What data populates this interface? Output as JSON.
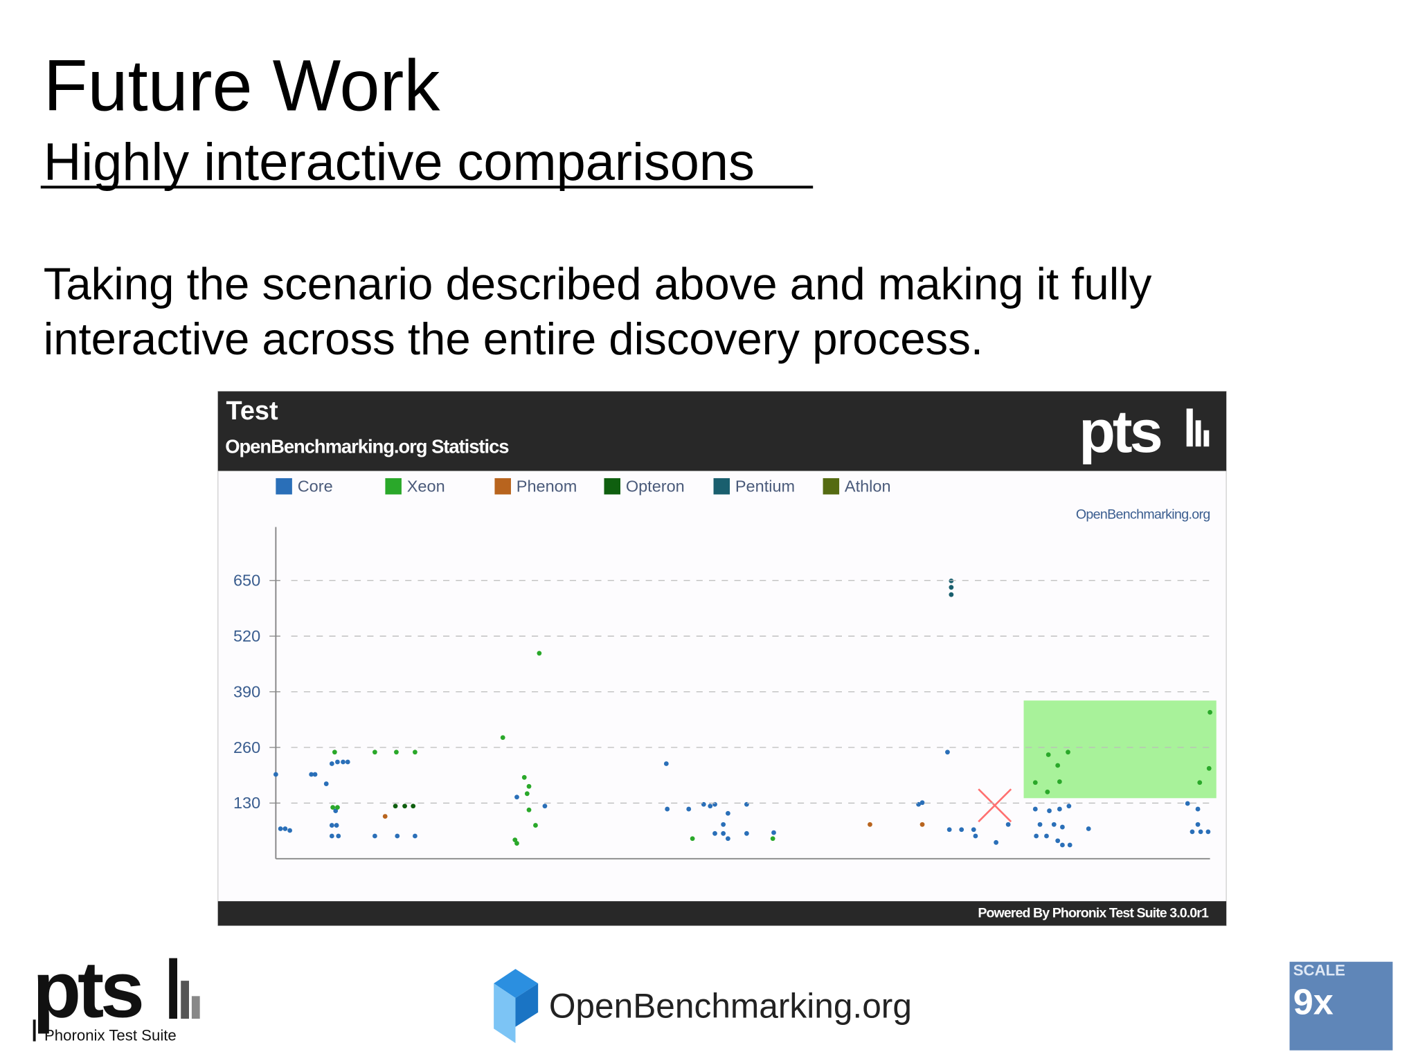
{
  "slide": {
    "title": "Future Work",
    "subtitle": "Highly interactive comparisons",
    "body": [
      "Taking the scenario described above and making it fully",
      "interactive across the entire discovery process."
    ]
  },
  "chart_data": {
    "type": "scatter",
    "title": "Test",
    "subtitle": "OpenBenchmarking.org Statistics",
    "watermark": "OpenBenchmarking.org",
    "brand": "pts",
    "footer": "Powered By Phoronix Test Suite 3.0.0r1",
    "xlim": [
      0,
      100
    ],
    "ylim": [
      0,
      775
    ],
    "yticks": [
      130,
      260,
      390,
      520,
      650
    ],
    "grid": true,
    "series": [
      {
        "name": "Core",
        "color": "#2a6fb8",
        "x": [
          0,
          0.5,
          1.0,
          1.5,
          3.8,
          4.2,
          5.4,
          6.0,
          6.6,
          7.2,
          7.7,
          6.4,
          6.0,
          6.5,
          6.0,
          6.7,
          10.6,
          13.0,
          14.9,
          25.8,
          28.8,
          41.8,
          41.9,
          44.2,
          45.8,
          46.5,
          47.0,
          48.4,
          47.9,
          47.0,
          47.9,
          48.4,
          50.4,
          50.4,
          53.3,
          68.8,
          69.2,
          71.9,
          72.1,
          73.4,
          74.7,
          74.9,
          77.1,
          78.4,
          81.3,
          82.8,
          83.9,
          84.9,
          81.8,
          83.3,
          84.2,
          81.4,
          82.5,
          83.7,
          85.0,
          84.2,
          87.0,
          97.6,
          98.7,
          98.7,
          98.1,
          99.0,
          99.8
        ],
        "values": [
          197,
          70,
          70,
          66,
          197,
          197,
          175,
          222,
          226,
          226,
          226,
          112,
          78,
          78,
          53,
          53,
          53,
          53,
          53,
          144,
          123,
          222,
          116,
          116,
          127,
          123,
          127,
          106,
          80,
          59,
          59,
          47,
          127,
          59,
          61,
          127,
          131,
          249,
          68,
          68,
          68,
          53,
          38,
          80,
          116,
          112,
          116,
          123,
          80,
          80,
          74,
          53,
          53,
          42,
          32,
          32,
          70,
          129,
          116,
          80,
          63,
          63,
          63
        ]
      },
      {
        "name": "Xeon",
        "color": "#2aa82a",
        "x": [
          6.3,
          6.1,
          6.6,
          10.6,
          12.9,
          14.9,
          24.3,
          28.2,
          26.6,
          27.1,
          26.9,
          27.1,
          27.8,
          25.6,
          25.8,
          44.6,
          53.2,
          81.3,
          82.6,
          82.7,
          83.7,
          84.8,
          83.9,
          98.9,
          99.9,
          100
        ],
        "values": [
          249,
          120,
          120,
          249,
          249,
          249,
          283,
          480,
          190,
          169,
          152,
          114,
          78,
          44,
          36,
          47,
          47,
          178,
          156,
          243,
          218,
          249,
          180,
          178,
          211,
          342
        ]
      },
      {
        "name": "Phenom",
        "color": "#b8641e",
        "x": [
          11.7,
          63.6,
          69.2
        ],
        "values": [
          99,
          80,
          80
        ]
      },
      {
        "name": "Opteron",
        "color": "#0f5f0f",
        "x": [
          12.8,
          13.8,
          14.7
        ],
        "values": [
          123,
          123,
          123
        ]
      },
      {
        "name": "Pentium",
        "color": "#1a5f6e",
        "x": [
          72.3,
          72.3,
          72.3
        ],
        "values": [
          649,
          634,
          617
        ]
      },
      {
        "name": "Athlon",
        "color": "#556b12",
        "x": [],
        "values": []
      }
    ]
  },
  "logos": {
    "pts": "pts",
    "pts_caption": "Phoronix Test Suite",
    "openbenchmarking": "OpenBenchmarking.org",
    "scale": "SCALE",
    "scale_num": "9x"
  }
}
